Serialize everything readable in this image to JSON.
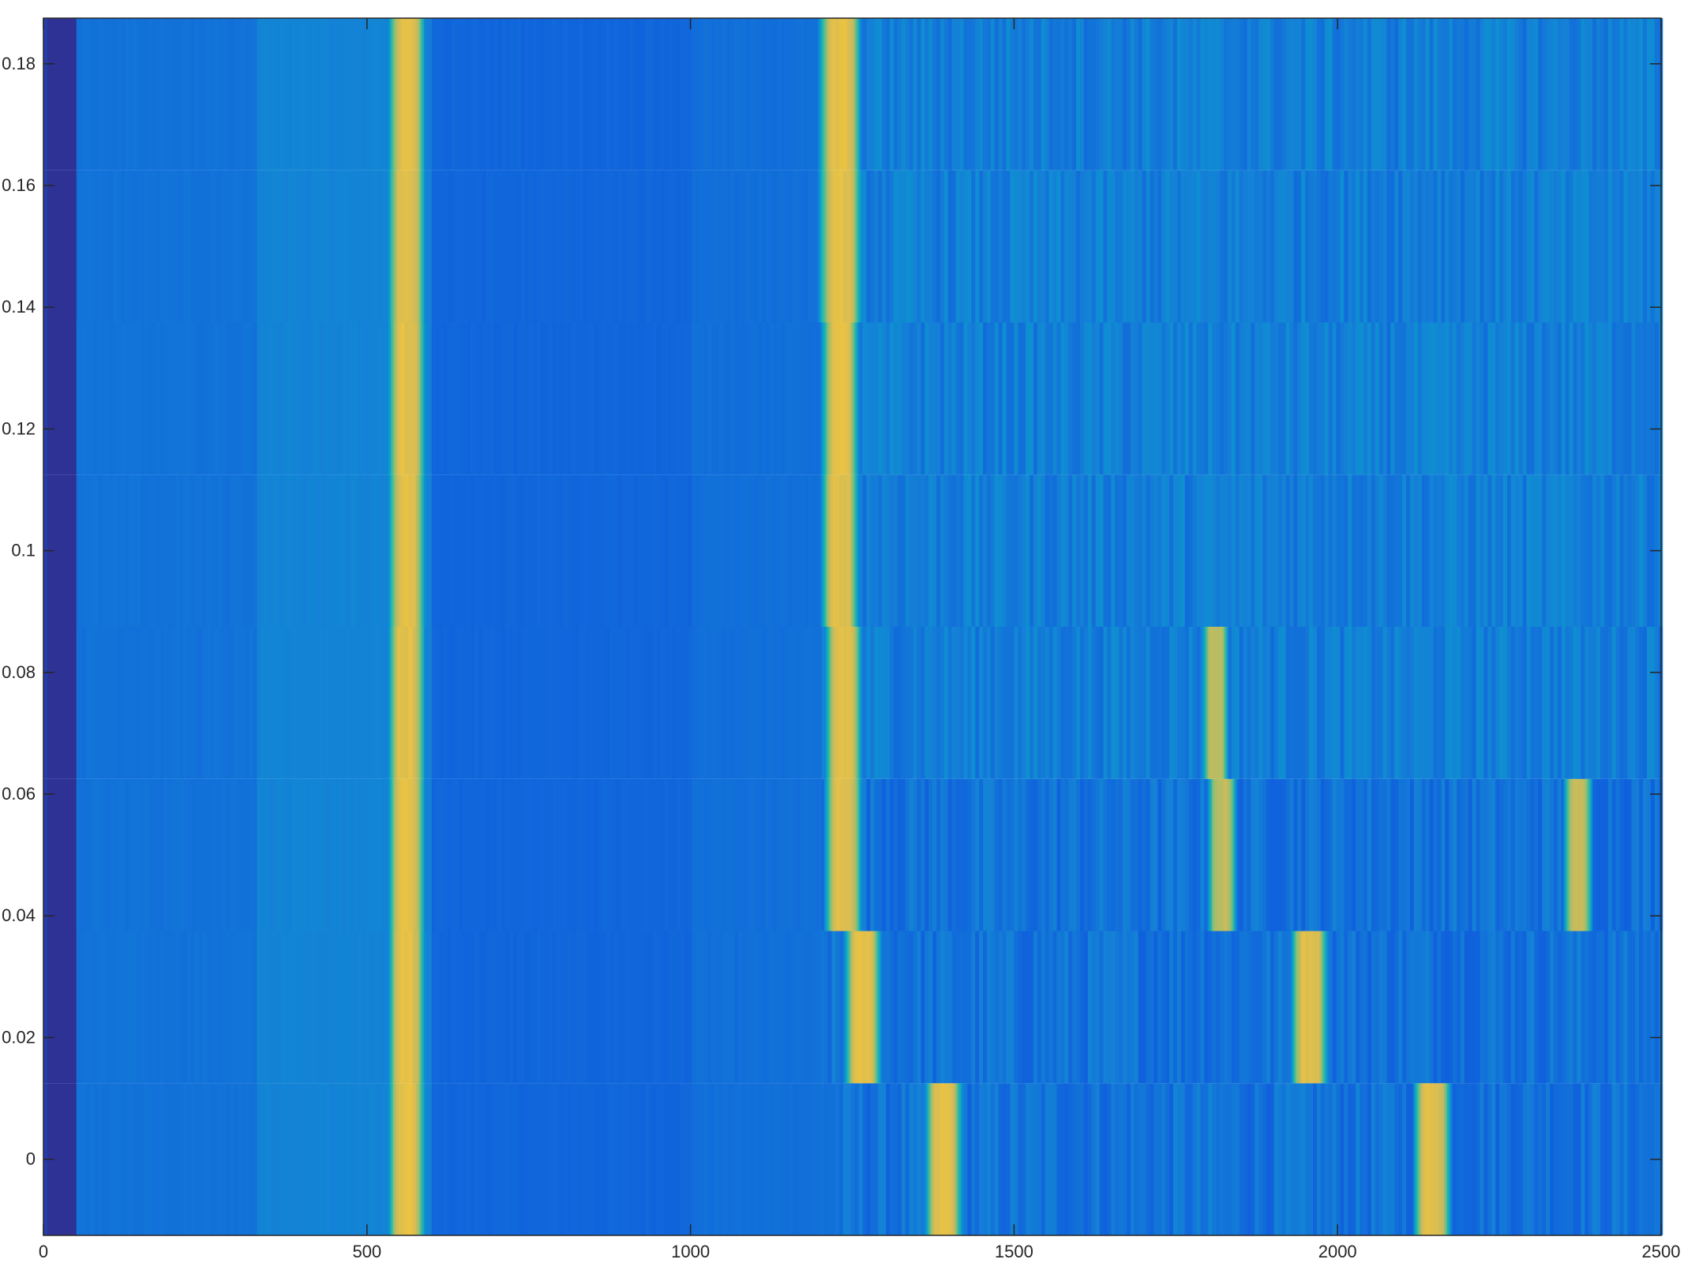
{
  "chart_data": {
    "type": "heatmap",
    "title": "",
    "xlabel": "",
    "ylabel": "",
    "xlim": [
      0,
      2500
    ],
    "ylim": [
      -0.0125,
      0.1875
    ],
    "x_ticks": [
      0,
      500,
      1000,
      1500,
      2000,
      2500
    ],
    "y_ticks": [
      0,
      0.02,
      0.04,
      0.06,
      0.08,
      0.1,
      0.12,
      0.14,
      0.16,
      0.18
    ],
    "x_tick_labels": [
      "0",
      "500",
      "1000",
      "1500",
      "2000",
      "2500"
    ],
    "y_tick_labels": [
      "0",
      "0.02",
      "0.04",
      "0.06",
      "0.08",
      "0.1",
      "0.12",
      "0.14",
      "0.16",
      "0.18"
    ],
    "colormap": "parula",
    "colormap_stops": [
      "#352a87",
      "#0f5cdd",
      "#1481d6",
      "#06a4ca",
      "#2eb7a4",
      "#87bf77",
      "#d1bb59",
      "#fec832",
      "#f9fb0e"
    ],
    "rows": [
      {
        "y": 0.0,
        "peaks": [
          [
            560,
            28,
            0.8
          ],
          [
            1390,
            28,
            0.8
          ],
          [
            2145,
            28,
            0.8
          ]
        ]
      },
      {
        "y": 0.025,
        "peaks": [
          [
            560,
            28,
            0.8
          ],
          [
            1265,
            28,
            0.8
          ],
          [
            1955,
            28,
            0.8
          ]
        ]
      },
      {
        "y": 0.05,
        "peaks": [
          [
            560,
            28,
            0.8
          ],
          [
            1235,
            28,
            0.8
          ],
          [
            1820,
            22,
            0.72
          ],
          [
            2370,
            22,
            0.72
          ]
        ]
      },
      {
        "y": 0.075,
        "peaks": [
          [
            560,
            28,
            0.8
          ],
          [
            1235,
            28,
            0.8
          ],
          [
            1810,
            20,
            0.72
          ]
        ]
      },
      {
        "y": 0.1,
        "peaks": [
          [
            560,
            28,
            0.8
          ],
          [
            1230,
            28,
            0.8
          ]
        ]
      },
      {
        "y": 0.125,
        "peaks": [
          [
            560,
            28,
            0.8
          ],
          [
            1230,
            28,
            0.8
          ]
        ]
      },
      {
        "y": 0.15,
        "peaks": [
          [
            560,
            28,
            0.8
          ],
          [
            1230,
            32,
            0.8
          ]
        ]
      },
      {
        "y": 0.175,
        "peaks": [
          [
            560,
            28,
            0.8
          ],
          [
            1230,
            32,
            0.8
          ]
        ]
      }
    ]
  }
}
